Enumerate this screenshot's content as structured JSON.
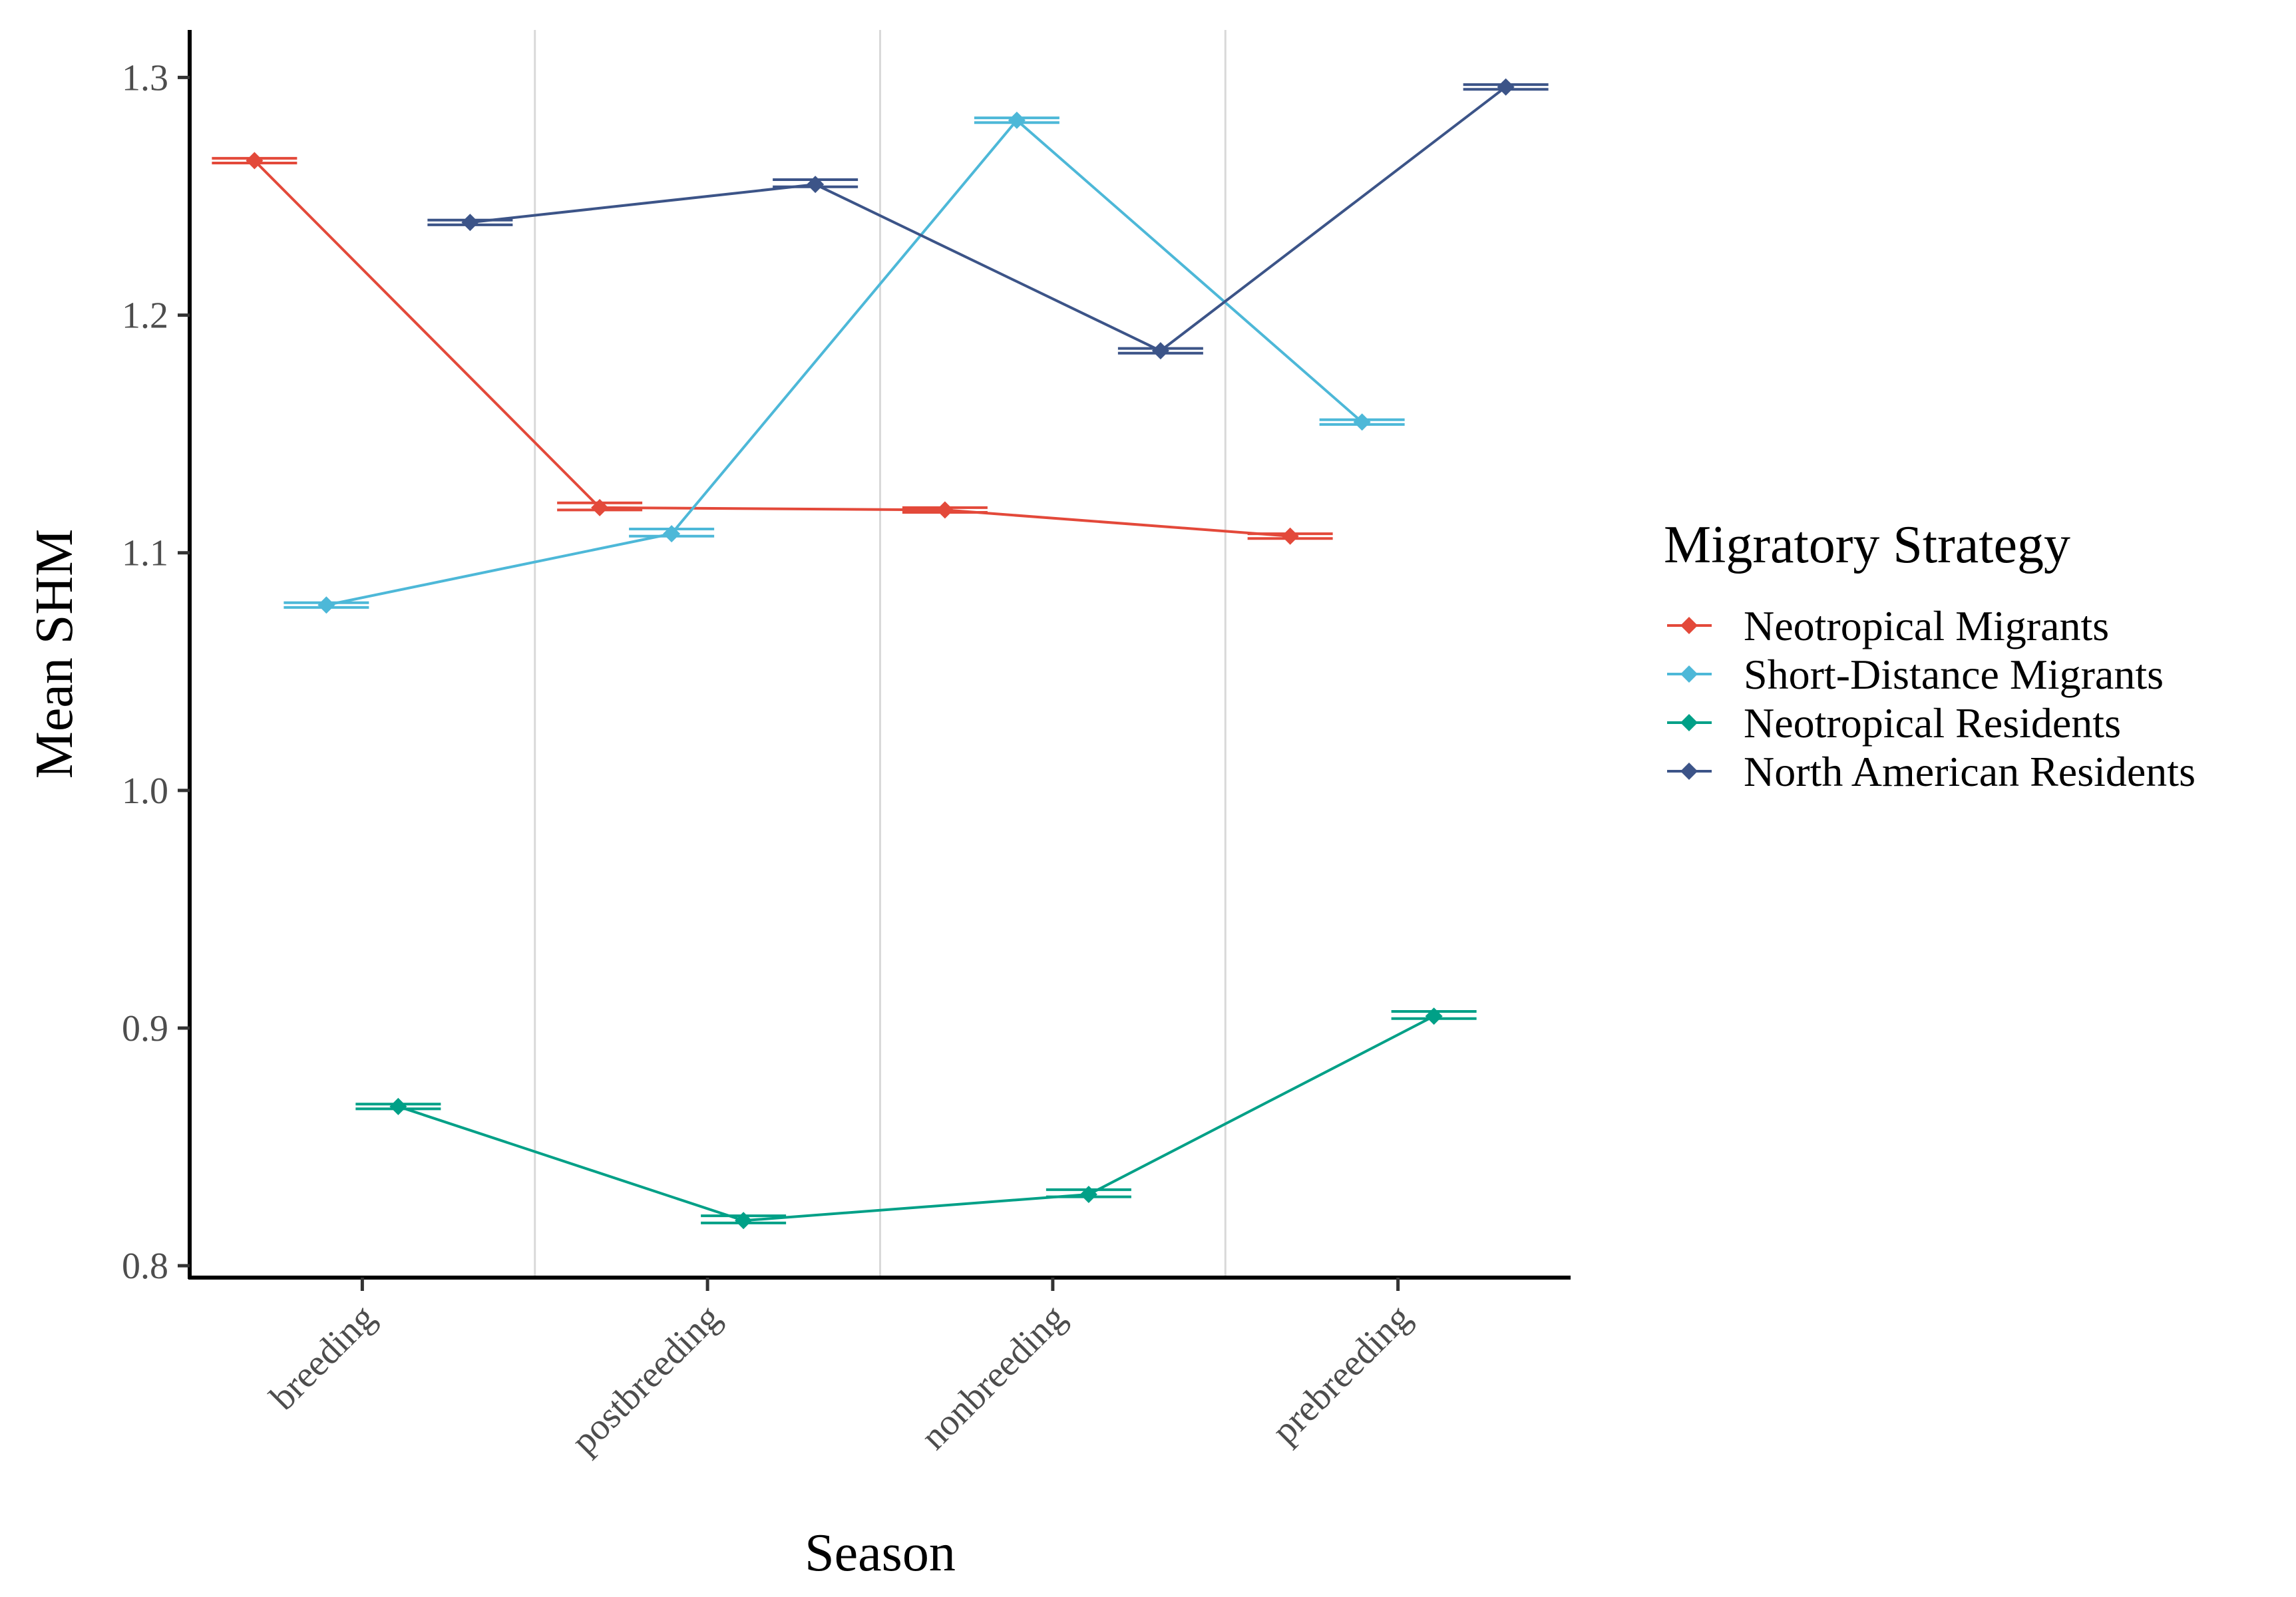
{
  "chart_data": {
    "type": "line",
    "title": "",
    "xlabel": "Season",
    "ylabel": "Mean SHM",
    "categories": [
      "breeding",
      "postbreeding",
      "nonbreeding",
      "prebreeding"
    ],
    "ylim": [
      0.795,
      1.32
    ],
    "yticks": [
      0.8,
      0.9,
      1.0,
      1.1,
      1.2,
      1.3
    ],
    "ytick_labels": [
      "0.8",
      "0.9",
      "1.0",
      "1.1",
      "1.2",
      "1.3"
    ],
    "grid": "vertical lines between categories",
    "legend": {
      "title": "Migratory Strategy",
      "position": "right"
    },
    "error_bars": "narrow horizontal double caps at each point",
    "series": [
      {
        "name": "Neotropical Migrants",
        "color": "#e3493a",
        "marker": "diamond",
        "dodge_index": 0,
        "values": [
          1.265,
          1.119,
          1.118,
          1.107
        ],
        "error_low": [
          1.264,
          1.118,
          1.117,
          1.106
        ],
        "error_high": [
          1.266,
          1.121,
          1.119,
          1.108
        ]
      },
      {
        "name": "Short-Distance Migrants",
        "color": "#4db8d8",
        "marker": "diamond",
        "dodge_index": 1,
        "values": [
          1.078,
          1.108,
          1.282,
          1.155
        ],
        "error_low": [
          1.077,
          1.107,
          1.281,
          1.154
        ],
        "error_high": [
          1.079,
          1.11,
          1.283,
          1.156
        ]
      },
      {
        "name": "Neotropical Residents",
        "color": "#00a087",
        "marker": "diamond",
        "dodge_index": 2,
        "values": [
          0.867,
          0.819,
          0.83,
          0.905
        ],
        "error_low": [
          0.866,
          0.818,
          0.829,
          0.904
        ],
        "error_high": [
          0.868,
          0.821,
          0.832,
          0.907
        ]
      },
      {
        "name": "North American Residents",
        "color": "#3c5488",
        "marker": "diamond",
        "dodge_index": 3,
        "values": [
          1.239,
          1.255,
          1.185,
          1.296
        ],
        "error_low": [
          1.238,
          1.254,
          1.184,
          1.295
        ],
        "error_high": [
          1.24,
          1.257,
          1.186,
          1.297
        ]
      }
    ]
  }
}
